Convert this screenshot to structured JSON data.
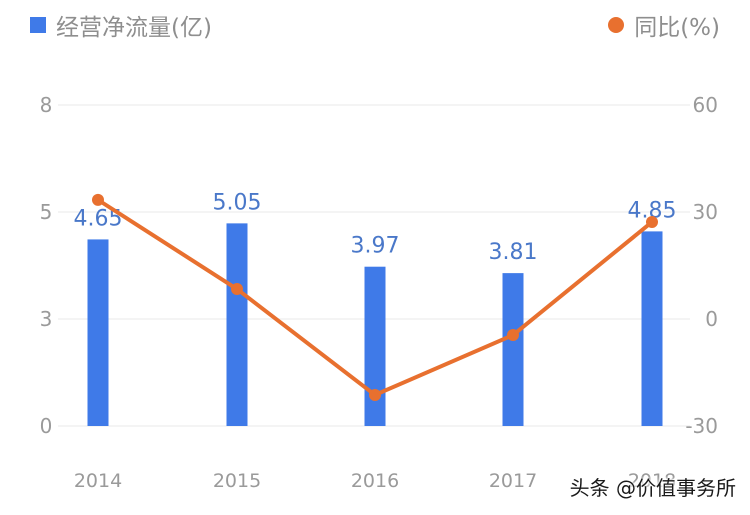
{
  "legend": {
    "bar_label": "经营净流量(亿)",
    "line_label": "同比(%)"
  },
  "watermark": "头条 @价值事务所",
  "colors": {
    "bar": "#3f7ae8",
    "line": "#e8702f",
    "data_label": "#4a78c9",
    "axis_text": "#9a9a9a",
    "grid": "#f0f0f0"
  },
  "chart_data": {
    "type": "bar",
    "title": "",
    "categories": [
      "2014",
      "2015",
      "2016",
      "2017",
      "2018"
    ],
    "series": [
      {
        "name": "经营净流量(亿)",
        "type": "bar",
        "axis": "left",
        "values": [
          4.65,
          5.05,
          3.97,
          3.81,
          4.85
        ],
        "data_labels": [
          "4.65",
          "5.05",
          "3.97",
          "3.81",
          "4.85"
        ]
      },
      {
        "name": "同比(%)",
        "type": "line",
        "axis": "right",
        "values": [
          33.4,
          8.4,
          -21.3,
          -4.5,
          27.2
        ]
      }
    ],
    "left_axis": {
      "ticks": [
        "0",
        "3",
        "5",
        "8"
      ],
      "ylim": [
        0,
        8
      ]
    },
    "right_axis": {
      "ticks": [
        "-30",
        "0",
        "30",
        "60"
      ],
      "ylim": [
        -30,
        60
      ]
    },
    "xlabel": "",
    "ylabel": "",
    "grid": true,
    "legend_position": "top"
  }
}
